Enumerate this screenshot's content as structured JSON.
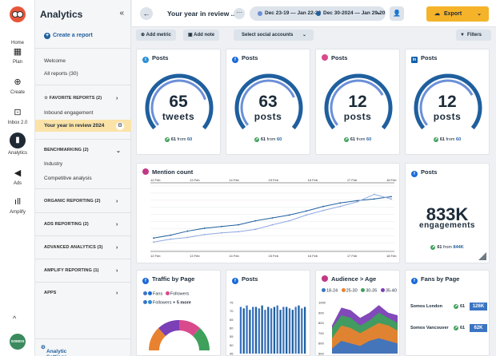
{
  "rail": {
    "items": [
      {
        "label": "Home",
        "icon": "home-icon"
      },
      {
        "label": "Plan",
        "icon": "calendar-icon"
      },
      {
        "label": "Create",
        "icon": "plus-circle-icon"
      },
      {
        "label": "Inbox 2.0",
        "icon": "inbox-icon"
      },
      {
        "label": "Analytics",
        "icon": "bar-chart-icon"
      },
      {
        "label": "Ads",
        "icon": "megaphone-icon"
      },
      {
        "label": "Amplify",
        "icon": "amplify-icon"
      }
    ],
    "avatar_text": "SOMOS"
  },
  "sidebar": {
    "title": "Analytics",
    "create_report": "Create a report",
    "welcome": "Welcome",
    "all_reports": "All reports (30)",
    "favorite_reports": "FAVORITE REPORTS (2)",
    "inbound_engagement": "Inbound engagement",
    "active_report": "Your year in review 2024",
    "benchmarking": "BENCHMARKING (2)",
    "industry": "Industry",
    "competitive_analysis": "Competitive analysis",
    "organic_reporting": "ORGANIC REPORTING (2)",
    "ads_reporting": "ADS REPORTING (2)",
    "advanced_analytics": "ADVANCED ANALYTICS (3)",
    "amplify_reporting": "AMPLIFY REPORTING (1)",
    "apps": "APPS",
    "footer": "Analytic Settings"
  },
  "topbar": {
    "report_title": "Your year in review ..",
    "date_range_1": "Dec 23-19 — Jan 22-20",
    "date_range_2": "Dec 30-2024 — Jan 29-20",
    "export_label": "Export"
  },
  "toolbar": {
    "add_metric": "Add metric",
    "add_note": "Add note",
    "select_accounts": "Select social accounts",
    "filters": "Filters"
  },
  "colors": {
    "accent": "#f5b32a",
    "gauge_dark": "#1f5f9e",
    "gauge_light": "#6b8fd8",
    "positive": "#3ea05b"
  },
  "post_cards": [
    {
      "network": "twitter",
      "title": "Posts",
      "value": "65",
      "unit": "tweets",
      "change": "61",
      "from_label": "from",
      "previous": "60",
      "fill": 0.78
    },
    {
      "network": "facebook",
      "title": "Posts",
      "value": "63",
      "unit": "posts",
      "change": "61",
      "from_label": "from",
      "previous": "60",
      "fill": 0.76
    },
    {
      "network": "instagram",
      "title": "Posts",
      "value": "12",
      "unit": "posts",
      "change": "61",
      "from_label": "from",
      "previous": "60",
      "fill": 0.74
    },
    {
      "network": "linkedin",
      "title": "Posts",
      "value": "12",
      "unit": "posts",
      "change": "61",
      "from_label": "from",
      "previous": "60",
      "fill": 0.74
    }
  ],
  "engagements_card": {
    "title": "Posts",
    "value": "833K",
    "unit": "engagements",
    "change": "61",
    "from_label": "from",
    "previous": "844K"
  },
  "mention_chart": {
    "title": "Mention count",
    "chart_data": {
      "type": "line",
      "x_top": [
        "12 Feb",
        "13 Feb",
        "14 Feb",
        "15 Feb",
        "16 Feb",
        "17 Feb",
        "18 Feb"
      ],
      "x_bottom": [
        "12 Feb",
        "13 Feb",
        "14 Feb",
        "15 Feb",
        "16 Feb",
        "17 Feb",
        "18 Feb"
      ],
      "ylim": [
        0,
        10
      ],
      "series": [
        {
          "values": [
            1.5,
            2.0,
            2.7,
            3.2,
            3.5,
            3.8,
            4.5,
            5.0,
            5.5,
            6.2,
            7.0,
            7.6,
            8.0,
            8.3,
            8.7
          ]
        },
        {
          "values": [
            0.8,
            1.3,
            1.6,
            2.1,
            2.4,
            2.6,
            3.0,
            3.8,
            4.5,
            5.5,
            6.3,
            7.0,
            7.8,
            9.1,
            8.3
          ]
        }
      ]
    }
  },
  "traffic_card": {
    "title": "Traffic by Page",
    "legend_1": "Fans",
    "legend_2": "Followers",
    "legend_3": "Followers",
    "legend_more": "+ 5 more"
  },
  "posts_bar_card": {
    "title": "Posts",
    "chart_data": {
      "type": "bar",
      "yticks": [
        "75",
        "70",
        "65",
        "60",
        "55",
        "50",
        "45"
      ],
      "values": [
        72,
        71,
        73,
        70,
        72,
        72,
        71,
        73,
        70,
        72,
        71,
        72,
        73,
        70,
        72,
        72,
        71,
        70,
        72,
        73,
        71,
        72
      ]
    }
  },
  "audience_card": {
    "title": "Audience > Age",
    "legend": [
      {
        "label": "18-24",
        "color": "#3b74c2"
      },
      {
        "label": "25-30",
        "color": "#e8822f"
      },
      {
        "label": "30-35",
        "color": "#3ea05b"
      },
      {
        "label": "35-40",
        "color": "#7b3fb6"
      }
    ],
    "chart_data": {
      "type": "area",
      "yticks": [
        "1000",
        "900",
        "800",
        "700",
        "600",
        "500"
      ]
    }
  },
  "fans_card": {
    "title": "Fans by Page",
    "rows": [
      {
        "name": "Somos London",
        "change": "61",
        "badge": "126K"
      },
      {
        "name": "Somos Vancouver",
        "change": "61",
        "badge": "62K"
      }
    ]
  }
}
